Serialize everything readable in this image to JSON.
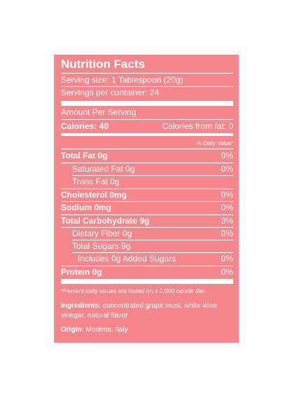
{
  "title": "Nutrition Facts",
  "serving_size": "Serving size: 1 Tablespoon (20g)",
  "servings_per_container": "Servings per container: 24",
  "amount_per_serving": "Amount Per Serving",
  "calories_label": "Calories: 40",
  "calories_from_fat": "Calories from fat: 0",
  "daily_value_header": "% Daily Value*",
  "nutrients": [
    {
      "label": "Total Fat 0g",
      "dv": "0%"
    },
    {
      "label": "Saturated Fat 0g",
      "dv": "0%"
    },
    {
      "label": "Trans Fat 0g",
      "dv": ""
    },
    {
      "label": "Cholesterol 0mg",
      "dv": "0%"
    },
    {
      "label": "Sodium 0mg",
      "dv": "0%"
    },
    {
      "label": "Total Carbohydrate 9g",
      "dv": "3%"
    },
    {
      "label": "Dietary Fiber 0g",
      "dv": "0%"
    },
    {
      "label": "Total Sugars 9g",
      "dv": ""
    },
    {
      "label": "Includes 0g Added Sugars",
      "dv": "0%"
    },
    {
      "label": "Protein 0g",
      "dv": "0%"
    }
  ],
  "footnote": "*Percent daily values are based on a 2,000 calorie diet.",
  "ingredients_label": "Ingredients:",
  "ingredients_text": " concentrated grape must, white wine vinegar, natural flavor",
  "origin_label": "Origin:",
  "origin_text": " Modena, Italy",
  "colors": {
    "panel": "#f5868c",
    "text": "#ffffff"
  }
}
